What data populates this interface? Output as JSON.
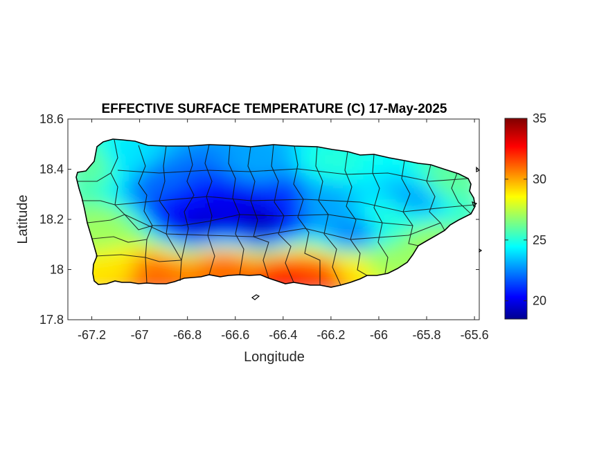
{
  "chart_data": {
    "type": "heatmap",
    "title": "EFFECTIVE SURFACE TEMPERATURE (C) 17-May-2025",
    "xlabel": "Longitude",
    "ylabel": "Latitude",
    "xlim": [
      -67.3,
      -65.58
    ],
    "ylim": [
      17.8,
      18.6
    ],
    "xticks": [
      -67.2,
      -67,
      -66.8,
      -66.6,
      -66.4,
      -66.2,
      -66,
      -65.8,
      -65.6
    ],
    "xtick_labels": [
      "-67.2",
      "-67",
      "-66.8",
      "-66.6",
      "-66.4",
      "-66.2",
      "-66",
      "-65.8",
      "-65.6"
    ],
    "yticks": [
      17.8,
      18,
      18.2,
      18.4,
      18.6
    ],
    "ytick_labels": [
      "17.8",
      "18",
      "18.2",
      "18.4",
      "18.6"
    ],
    "colorbar": {
      "colormap": "jet",
      "range": [
        18.5,
        35
      ],
      "ticks": [
        20,
        25,
        30,
        35
      ],
      "tick_labels": [
        "20",
        "25",
        "30",
        "35"
      ]
    },
    "grid": false,
    "region": "Puerto Rico (municipal boundaries)",
    "temperature_field": [
      {
        "lon": -67.2,
        "lat": 18.42,
        "value": 26
      },
      {
        "lon": -67.05,
        "lat": 18.45,
        "value": 24
      },
      {
        "lon": -66.9,
        "lat": 18.35,
        "value": 22
      },
      {
        "lon": -66.8,
        "lat": 18.26,
        "value": 20.5
      },
      {
        "lon": -66.75,
        "lat": 18.2,
        "value": 19.5
      },
      {
        "lon": -66.6,
        "lat": 18.25,
        "value": 20
      },
      {
        "lon": -66.5,
        "lat": 18.2,
        "value": 19.3
      },
      {
        "lon": -66.4,
        "lat": 18.28,
        "value": 21
      },
      {
        "lon": -66.5,
        "lat": 18.42,
        "value": 23
      },
      {
        "lon": -66.25,
        "lat": 18.28,
        "value": 23
      },
      {
        "lon": -66.2,
        "lat": 18.42,
        "value": 25
      },
      {
        "lon": -66.1,
        "lat": 18.14,
        "value": 22.5
      },
      {
        "lon": -65.95,
        "lat": 18.2,
        "value": 25
      },
      {
        "lon": -65.85,
        "lat": 18.28,
        "value": 23
      },
      {
        "lon": -65.7,
        "lat": 18.35,
        "value": 26
      },
      {
        "lon": -65.8,
        "lat": 18.1,
        "value": 27
      },
      {
        "lon": -67.15,
        "lat": 18.15,
        "value": 27
      },
      {
        "lon": -67.1,
        "lat": 18.0,
        "value": 29
      },
      {
        "lon": -66.95,
        "lat": 17.98,
        "value": 31
      },
      {
        "lon": -66.65,
        "lat": 18.0,
        "value": 31
      },
      {
        "lon": -66.38,
        "lat": 17.96,
        "value": 32
      },
      {
        "lon": -66.25,
        "lat": 17.97,
        "value": 31.5
      },
      {
        "lon": -66.1,
        "lat": 18.0,
        "value": 29
      },
      {
        "lon": -66.0,
        "lat": 18.03,
        "value": 27
      }
    ]
  }
}
